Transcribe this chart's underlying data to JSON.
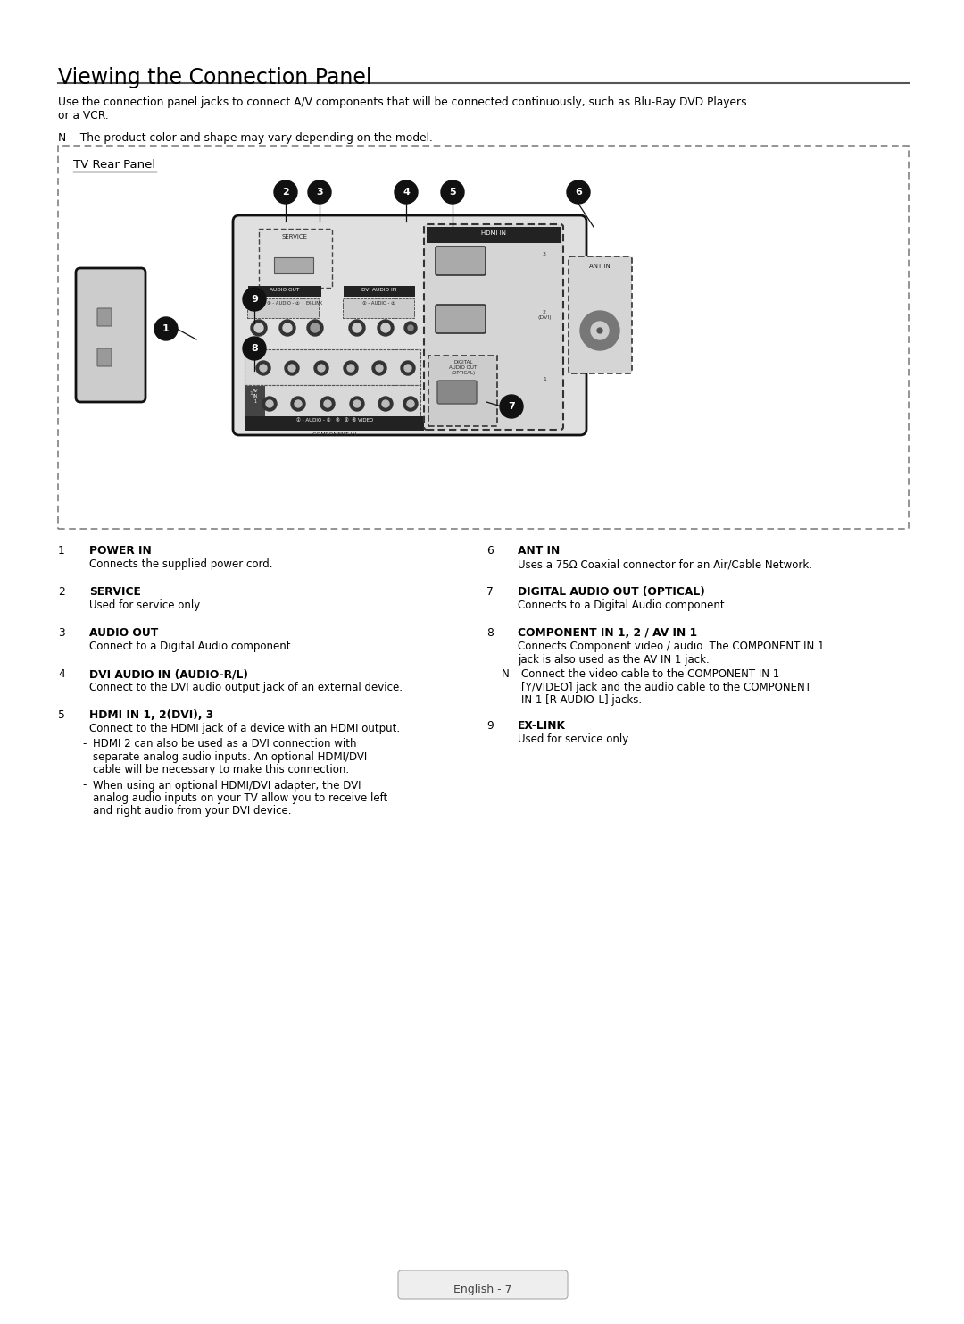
{
  "title": "Viewing the Connection Panel",
  "intro_line1": "Use the connection panel jacks to connect A/V components that will be connected continuously, such as Blu-Ray DVD Players",
  "intro_line2": "or a VCR.",
  "note_intro": "N    The product color and shape may vary depending on the model.",
  "panel_label": "TV Rear Panel",
  "bg_color": "#ffffff",
  "items_left": [
    {
      "num": "1",
      "heading": "POWER IN",
      "body": [
        "Connects the supplied power cord."
      ],
      "bullets": [],
      "note": []
    },
    {
      "num": "2",
      "heading": "SERVICE",
      "body": [
        "Used for service only."
      ],
      "bullets": [],
      "note": []
    },
    {
      "num": "3",
      "heading": "AUDIO OUT",
      "body": [
        "Connect to a Digital Audio component."
      ],
      "bullets": [],
      "note": []
    },
    {
      "num": "4",
      "heading": "DVI AUDIO IN (AUDIO-R/L)",
      "body": [
        "Connect to the DVI audio output jack of an external device."
      ],
      "bullets": [],
      "note": []
    },
    {
      "num": "5",
      "heading": "HDMI IN 1, 2(DVI), 3",
      "body": [
        "Connect to the HDMI jack of a device with an HDMI output."
      ],
      "bullets": [
        [
          "HDMI 2 can also be used as a DVI connection with",
          "separate analog audio inputs. An optional HDMI/DVI",
          "cable will be necessary to make this connection."
        ],
        [
          "When using an optional HDMI/DVI adapter, the DVI",
          "analog audio inputs on your TV allow you to receive left",
          "and right audio from your DVI device."
        ]
      ],
      "note": []
    }
  ],
  "items_right": [
    {
      "num": "6",
      "heading": "ANT IN",
      "body": [
        "Uses a 75Ω Coaxial connector for an Air/Cable Network."
      ],
      "bullets": [],
      "note": []
    },
    {
      "num": "7",
      "heading": "DIGITAL AUDIO OUT (OPTICAL)",
      "body": [
        "Connects to a Digital Audio component."
      ],
      "bullets": [],
      "note": []
    },
    {
      "num": "8",
      "heading": "COMPONENT IN 1, 2 / AV IN 1",
      "body": [
        "Connects Component video / audio. The COMPONENT IN 1",
        "jack is also used as the AV IN 1 jack."
      ],
      "bullets": [],
      "note": [
        "Connect the video cable to the COMPONENT IN 1",
        "[Y/VIDEO] jack and the audio cable to the COMPONENT",
        "IN 1 [R-AUDIO-L] jacks."
      ]
    },
    {
      "num": "9",
      "heading": "EX-LINK",
      "body": [
        "Used for service only."
      ],
      "bullets": [],
      "note": []
    }
  ],
  "footer": "English - 7"
}
